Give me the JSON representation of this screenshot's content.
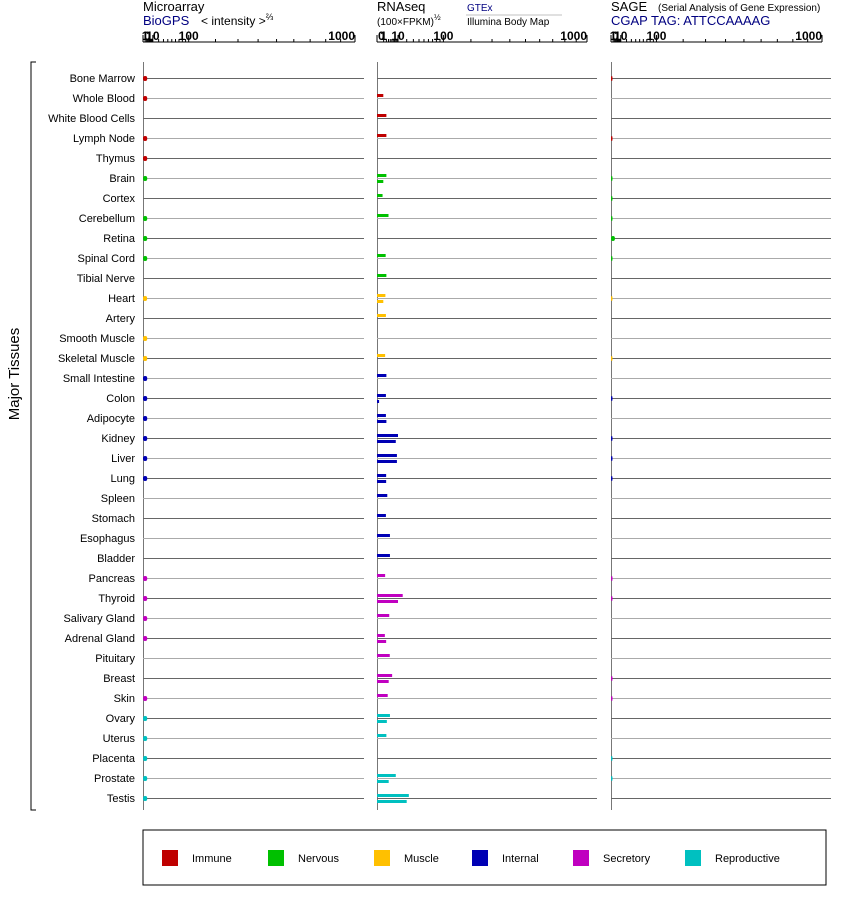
{
  "colors": {
    "Immune": "#bf0000",
    "Nervous": "#00c000",
    "Muscle": "#ffc000",
    "Internal": "#0000b4",
    "Secretory": "#c000c0",
    "Reproductive": "#00c0c0",
    "Gtex_header": "#000080",
    "Cgap_header": "#000080",
    "Biogps_header": "#000080"
  },
  "headers": {
    "microarray": {
      "title": "Microarray",
      "source": "BioGPS",
      "scale": "< intensity >",
      "scale_exp": "⅔"
    },
    "rnaseq": {
      "title": "RNAseq",
      "scale": "(100×FPKM)",
      "scale_exp": "½",
      "source1": "GTEx",
      "source2": "Illumina Body Map"
    },
    "sage": {
      "title": "SAGE",
      "subtitle": "(Serial Analysis of Gene Expression)",
      "source": "CGAP TAG: ATTCCAAAAG"
    }
  },
  "axis_ticks": [
    "0",
    "1",
    "10",
    "100",
    "1000"
  ],
  "y_group_label": "Major Tissues",
  "legend": [
    {
      "label": "Immune",
      "system": "Immune"
    },
    {
      "label": "Nervous",
      "system": "Nervous"
    },
    {
      "label": "Muscle",
      "system": "Muscle"
    },
    {
      "label": "Internal",
      "system": "Internal"
    },
    {
      "label": "Secretory",
      "system": "Secretory"
    },
    {
      "label": "Reproductive",
      "system": "Reproductive"
    }
  ],
  "chart_data": {
    "type": "bar",
    "categories": [
      "Bone Marrow",
      "Whole Blood",
      "White Blood Cells",
      "Lymph Node",
      "Thymus",
      "Brain",
      "Cortex",
      "Cerebellum",
      "Retina",
      "Spinal Cord",
      "Tibial Nerve",
      "Heart",
      "Artery",
      "Smooth Muscle",
      "Skeletal Muscle",
      "Small Intestine",
      "Colon",
      "Adipocyte",
      "Kidney",
      "Liver",
      "Lung",
      "Spleen",
      "Stomach",
      "Esophagus",
      "Bladder",
      "Pancreas",
      "Thyroid",
      "Salivary Gland",
      "Adrenal Gland",
      "Pituitary",
      "Breast",
      "Skin",
      "Ovary",
      "Uterus",
      "Placenta",
      "Prostate",
      "Testis"
    ],
    "systems": [
      "Immune",
      "Immune",
      "Immune",
      "Immune",
      "Immune",
      "Nervous",
      "Nervous",
      "Nervous",
      "Nervous",
      "Nervous",
      "Nervous",
      "Muscle",
      "Muscle",
      "Muscle",
      "Muscle",
      "Internal",
      "Internal",
      "Internal",
      "Internal",
      "Internal",
      "Internal",
      "Internal",
      "Internal",
      "Internal",
      "Internal",
      "Secretory",
      "Secretory",
      "Secretory",
      "Secretory",
      "Secretory",
      "Secretory",
      "Secretory",
      "Reproductive",
      "Reproductive",
      "Reproductive",
      "Reproductive",
      "Reproductive"
    ],
    "panels": [
      {
        "name": "Microarray",
        "values": [
          2.8,
          2.8,
          null,
          2.8,
          2.8,
          2.8,
          null,
          2.8,
          2.8,
          2.8,
          null,
          2.7,
          null,
          2.8,
          2.8,
          2.8,
          2.8,
          2.8,
          2.8,
          2.8,
          2.8,
          null,
          null,
          null,
          null,
          2.8,
          2.8,
          2.8,
          2.8,
          null,
          null,
          2.8,
          2.8,
          2.8,
          2.8,
          2.8,
          2.8
        ]
      },
      {
        "name": "RNAseq GTEx",
        "values": [
          null,
          0.9,
          2.0,
          2.0,
          null,
          2.0,
          0.7,
          3.0,
          null,
          1.7,
          2.0,
          1.6,
          1.8,
          null,
          1.5,
          2.0,
          1.8,
          1.8,
          10,
          9,
          1.9,
          2.4,
          1.8,
          3.8,
          3.8,
          1.5,
          15,
          3.4,
          1.4,
          3.7,
          5.2,
          2.6,
          3.8,
          2.0,
          null,
          8,
          23
        ]
      },
      {
        "name": "RNAseq Illumina Body Map",
        "values": [
          null,
          null,
          null,
          null,
          null,
          0.9,
          null,
          null,
          null,
          null,
          null,
          0.9,
          null,
          null,
          null,
          null,
          0.1,
          2.0,
          8,
          9,
          1.9,
          null,
          null,
          null,
          null,
          null,
          10,
          null,
          1.9,
          null,
          3.1,
          null,
          2.2,
          null,
          null,
          3.1,
          20
        ]
      },
      {
        "name": "SAGE",
        "values": [
          0.05,
          null,
          null,
          0.05,
          null,
          0.05,
          0.05,
          0.05,
          2.5,
          0.05,
          null,
          0.02,
          null,
          null,
          0.02,
          null,
          0.05,
          null,
          0.05,
          0.05,
          0.05,
          null,
          null,
          null,
          null,
          0.05,
          0.05,
          null,
          null,
          null,
          0.05,
          0.4,
          null,
          null,
          0.05,
          0.05,
          null
        ]
      }
    ],
    "xscale": "power",
    "xlim": [
      0,
      1000
    ]
  }
}
